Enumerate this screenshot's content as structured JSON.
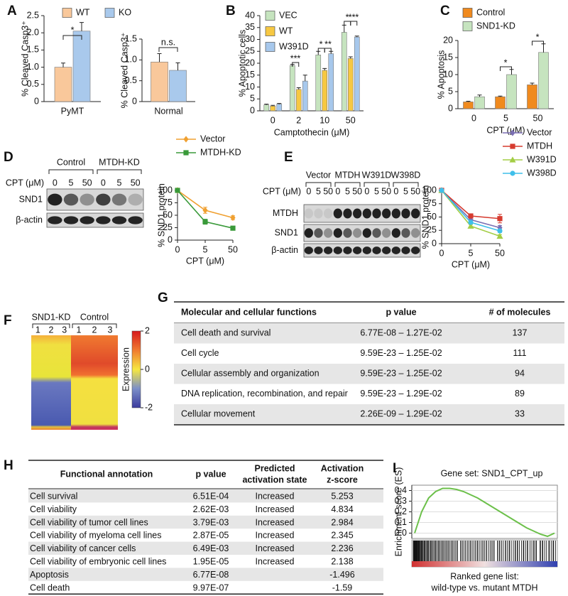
{
  "panel_labels": [
    "A",
    "B",
    "C",
    "D",
    "E",
    "F",
    "G",
    "H",
    "I"
  ],
  "chart_data": [
    {
      "type": "bar",
      "ylabel": "% Cleaved Casp3⁺",
      "categories": [
        "PyMT"
      ],
      "series": [
        {
          "name": "WT",
          "color": "#f9c89b",
          "values": [
            1.0
          ],
          "errors": [
            0.12
          ]
        },
        {
          "name": "KO",
          "color": "#a9c9ec",
          "values": [
            2.05
          ],
          "errors": [
            0.25
          ]
        }
      ],
      "ylim": [
        0,
        2.5
      ],
      "yticks": [
        0,
        0.5,
        {
          "value": 1,
          "label": "1.0"
        },
        1.5,
        {
          "value": 2,
          "label": "2.0"
        },
        2.5
      ],
      "annotations": [
        "*"
      ]
    },
    {
      "type": "bar",
      "ylabel": "% Cleaved Casp3⁺",
      "categories": [
        "Normal"
      ],
      "series": [
        {
          "color": "#f9c89b",
          "values": [
            0.95
          ],
          "errors": [
            0.2
          ]
        },
        {
          "color": "#a9c9ec",
          "values": [
            0.75
          ],
          "errors": [
            0.18
          ]
        }
      ],
      "ylim": [
        0,
        1.5
      ],
      "yticks": [
        0,
        0.5,
        {
          "value": 1,
          "label": "1.0"
        },
        1.5
      ],
      "annotations": [
        "n.s."
      ]
    },
    {
      "type": "bar",
      "ylabel": "% Apoptotic cells",
      "xlabel": "Camptothecin (μM)",
      "categories": [
        "0",
        "2",
        "10",
        "50"
      ],
      "series": [
        {
          "name": "VEC",
          "color": "#c6e4bf",
          "values": [
            2.5,
            19,
            23.5,
            33
          ],
          "errors": [
            0.3,
            0.5,
            1.5,
            3
          ]
        },
        {
          "name": "WT",
          "color": "#f7c842",
          "values": [
            2,
            9,
            17,
            22
          ],
          "errors": [
            0.3,
            0.7,
            0.8,
            0.7
          ]
        },
        {
          "name": "W391D",
          "color": "#a7c8ec",
          "values": [
            2.8,
            12.5,
            24,
            31
          ],
          "errors": [
            0.3,
            2.5,
            1,
            0.4
          ]
        }
      ],
      "ylim": [
        0,
        40
      ],
      "yticks": [
        0,
        5,
        10,
        15,
        20,
        25,
        30,
        35,
        40
      ],
      "annotations": [
        "***",
        "*",
        "**",
        "*",
        "***"
      ]
    },
    {
      "type": "bar",
      "ylabel": "% Apoptosis",
      "xlabel": "CPT (μM)",
      "categories": [
        "0",
        "5",
        "50"
      ],
      "series": [
        {
          "name": "Control",
          "color": "#f08a1e",
          "values": [
            2,
            3.5,
            7
          ],
          "errors": [
            0.2,
            0.2,
            0.5
          ]
        },
        {
          "name": "SND1-KD",
          "color": "#c6e4bf",
          "values": [
            3.5,
            10,
            16.5
          ],
          "errors": [
            0.5,
            1.5,
            2.5
          ]
        }
      ],
      "ylim": [
        0,
        20
      ],
      "yticks": [
        0,
        5,
        10,
        15,
        20
      ],
      "annotations": [
        "*",
        "*"
      ]
    },
    {
      "type": "line",
      "ylabel": "% SND1 protein",
      "xlabel": "CPT (μM)",
      "categories": [
        "0",
        "5",
        "50"
      ],
      "series": [
        {
          "name": "Vector",
          "color": "#f0a030",
          "marker": "diamond",
          "values": [
            100,
            60,
            45
          ],
          "errors": [
            0,
            6,
            4
          ]
        },
        {
          "name": "MTDH-KD",
          "color": "#3a9a3a",
          "marker": "square",
          "values": [
            100,
            37,
            24
          ],
          "errors": [
            0,
            5,
            2
          ]
        }
      ],
      "ylim": [
        0,
        100
      ],
      "yticks": [
        0,
        25,
        50,
        75,
        100
      ]
    },
    {
      "type": "line",
      "ylabel": "% SND1 protein",
      "xlabel": "CPT (μM)",
      "categories": [
        "0",
        "5",
        "50"
      ],
      "series": [
        {
          "name": "Vector",
          "color": "#7b6fb3",
          "marker": "diamond",
          "values": [
            100,
            45,
            30
          ],
          "errors": [
            0,
            3,
            4
          ]
        },
        {
          "name": "MTDH",
          "color": "#d63b2f",
          "marker": "square",
          "values": [
            100,
            52,
            47
          ],
          "errors": [
            0,
            3,
            8
          ]
        },
        {
          "name": "W391D",
          "color": "#a3cd45",
          "marker": "triangle",
          "values": [
            100,
            33,
            14
          ],
          "errors": [
            0,
            3,
            3
          ]
        },
        {
          "name": "W398D",
          "color": "#3fbfea",
          "marker": "circle",
          "values": [
            100,
            40,
            24
          ],
          "errors": [
            0,
            3,
            3
          ]
        }
      ],
      "ylim": [
        0,
        100
      ],
      "yticks": [
        0,
        25,
        50,
        75,
        100
      ]
    },
    {
      "type": "gsea",
      "title": "Gene set: SND1_CPT_up",
      "ylabel": "Enrichment score (ES)",
      "xlabel": [
        "Ranked gene list:",
        "wild-type vs. mutant MTDH"
      ],
      "color": "#6cc04a",
      "values": [
        0,
        0.2,
        0.33,
        0.39,
        0.42,
        0.42,
        0.41,
        0.39,
        0.36,
        0.33,
        0.29,
        0.25,
        0.21,
        0.17,
        0.13,
        0.09,
        0.05,
        0.02,
        -0.01,
        -0.03,
        0
      ],
      "ylim": [
        -0.05,
        0.45
      ],
      "yticks": [
        {
          "value": 0,
          "label": "0.0"
        },
        0.1,
        0.2,
        0.3,
        0.4
      ]
    }
  ],
  "blot_d": {
    "groups": [
      "Control",
      "MTDH-KD"
    ],
    "treatment": "CPT (μM)",
    "lanes": [
      "0",
      "5",
      "50",
      "0",
      "5",
      "50"
    ],
    "rows": [
      "SND1",
      "β-actin"
    ]
  },
  "blot_e": {
    "groups": [
      "Vector",
      "MTDH",
      "W391D",
      "W398D"
    ],
    "treatment": "CPT (μM)",
    "lanes": [
      "0",
      "5",
      "50",
      "0",
      "5",
      "50",
      "0",
      "5",
      "50",
      "0",
      "5",
      "50"
    ],
    "rows": [
      "MTDH",
      "SND1",
      "β-actin"
    ]
  },
  "heatmap": {
    "groups": [
      "SND1-KD",
      "Control"
    ],
    "columns": [
      "1",
      "2",
      "3",
      "1",
      "2",
      "3"
    ],
    "colorbar": {
      "label": "Expression",
      "lim": [
        -2,
        2
      ],
      "ticks": [
        2,
        0,
        -2
      ]
    }
  },
  "table_g": {
    "headers": [
      "Molecular and cellular functions",
      "p value",
      "# of molecules"
    ],
    "rows": [
      [
        "Cell death and survival",
        "6.77E-08 – 1.27E-02",
        137
      ],
      [
        "Cell cycle",
        "9.59E-23 – 1.25E-02",
        111
      ],
      [
        "Cellular assembly and organization",
        "9.59E-23 – 1.25E-02",
        94
      ],
      [
        "DNA replication, recombination, and repair",
        "9.59E-23 – 1.29E-02",
        89
      ],
      [
        "Cellular movement",
        "2.26E-09 – 1.29E-02",
        33
      ]
    ]
  },
  "table_h": {
    "headers": [
      "Functional annotation",
      "p value",
      [
        "Predicted",
        "activation state"
      ],
      [
        "Activation",
        "z-score"
      ]
    ],
    "z_colors": {
      "positive": "#d0312d",
      "negative": "#2e9a47"
    },
    "rows": [
      [
        "Cell survival",
        "6.51E-04",
        "Increased",
        5.253
      ],
      [
        "Cell viability",
        "2.62E-03",
        "Increased",
        4.834
      ],
      [
        "Cell viability of tumor cell lines",
        "3.79E-03",
        "Increased",
        2.984
      ],
      [
        "Cell viability of myeloma cell lines",
        "2.87E-05",
        "Increased",
        2.345
      ],
      [
        "Cell viability of cancer cells",
        "6.49E-03",
        "Increased",
        2.236
      ],
      [
        "Cell viability of embryonic cell lines",
        "1.95E-05",
        "Increased",
        2.138
      ],
      [
        "Apoptosis",
        "6.77E-08",
        null,
        -1.496
      ],
      [
        "Cell death",
        "9.97E-07",
        null,
        -1.59
      ]
    ]
  }
}
